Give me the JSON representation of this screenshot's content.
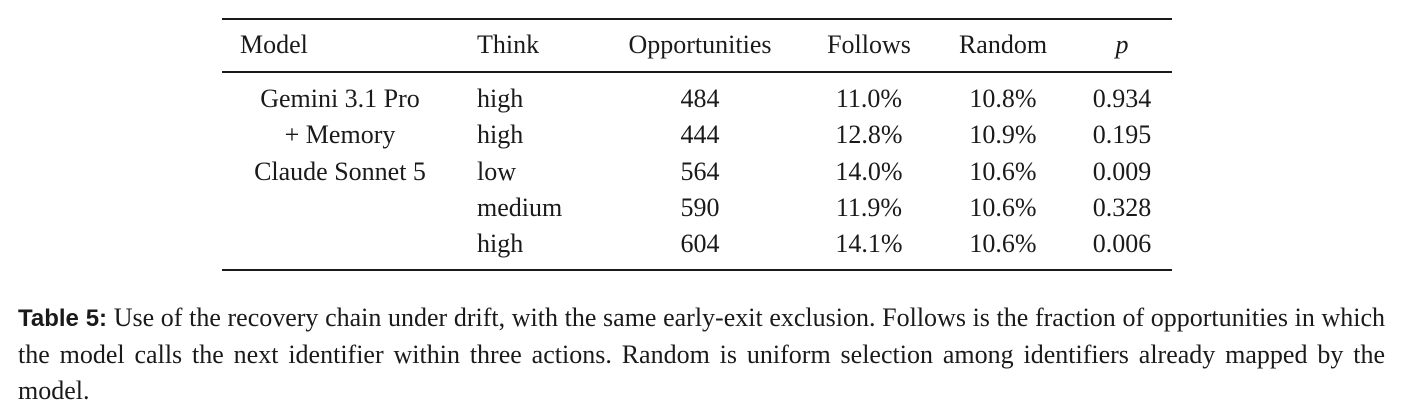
{
  "table": {
    "header": [
      "Model",
      "Think",
      "Opportunities",
      "Follows",
      "Random",
      "p"
    ],
    "rows": [
      [
        "Gemini 3.1 Pro",
        "high",
        "484",
        "11.0%",
        "10.8%",
        "0.934"
      ],
      [
        "+ Memory",
        "high",
        "444",
        "12.8%",
        "10.9%",
        "0.195"
      ],
      [
        "Claude Sonnet 5",
        "low",
        "564",
        "14.0%",
        "10.6%",
        "0.009"
      ],
      [
        null,
        "medium",
        "590",
        "11.9%",
        "10.6%",
        "0.328"
      ],
      [
        null,
        "high",
        "604",
        "14.1%",
        "10.6%",
        "0.006"
      ]
    ]
  },
  "caption": {
    "label": "Table 5:",
    "text": "Use of the recovery chain under drift, with the same early-exit exclusion. Follows is the fraction of opportunities in which the model calls the next identifier within three actions. Random is uniform selection among identifiers already mapped by the model."
  }
}
